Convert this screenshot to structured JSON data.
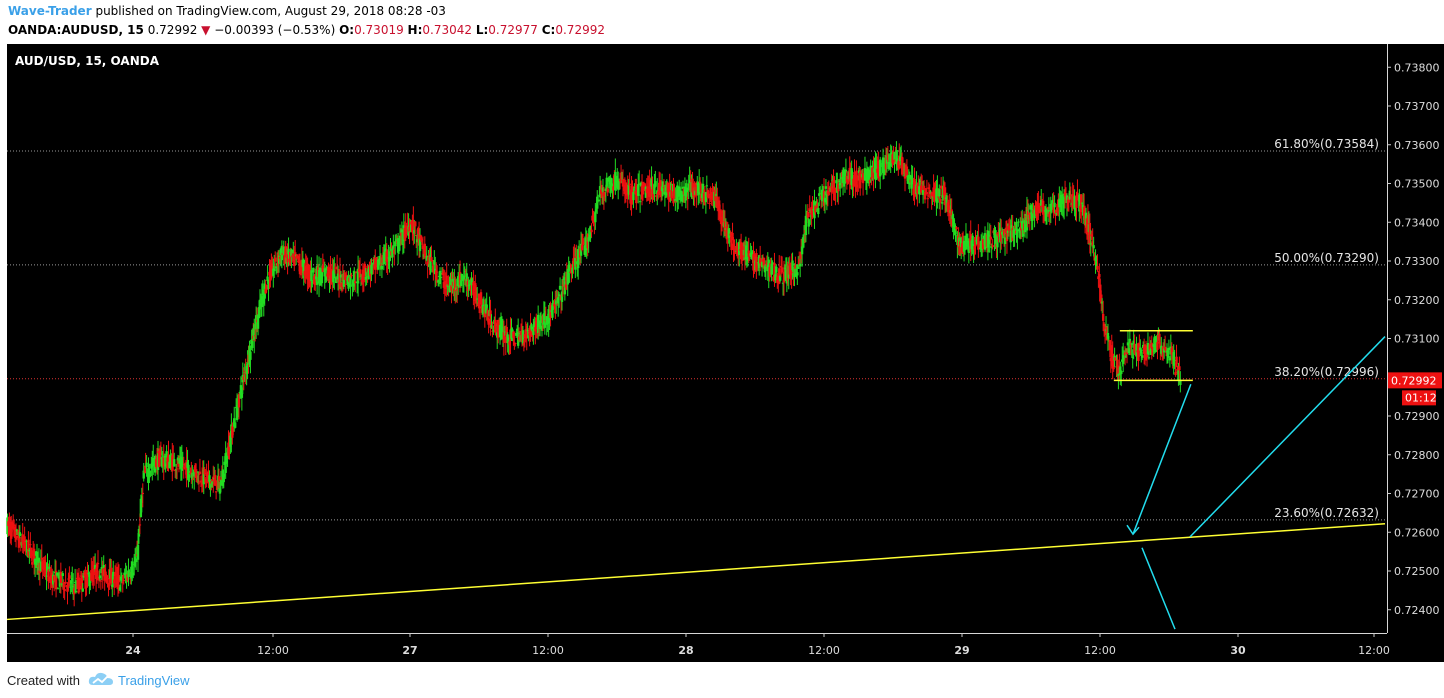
{
  "header": {
    "author": "Wave-Trader",
    "published": "published on TradingView.com, August 29, 2018 08:28 -03",
    "symbol": "OANDA:AUDUSD, 15",
    "price": "0.72992",
    "change": "−0.00393 (−0.53%)",
    "open_label": "O:",
    "open": "0.73019",
    "high_label": "H:",
    "high": "0.73042",
    "low_label": "L:",
    "low": "0.72977",
    "close_label": "C:",
    "close": "0.72992"
  },
  "footer": {
    "created_with": "Created with",
    "brand": "TradingView"
  },
  "colors": {
    "background": "#000000",
    "up": "#22dd22",
    "down": "#ee1111",
    "trendline": "#ffff33",
    "arrow": "#22ddee",
    "price_badge": "#ee1111",
    "axis_text": "#dddddd"
  },
  "chart_data": {
    "type": "candlestick",
    "title": "AUD/USD, 15, OANDA",
    "x_ticks": [
      "24",
      "12:00",
      "27",
      "12:00",
      "28",
      "12:00",
      "29",
      "12:00",
      "30",
      "12:00"
    ],
    "ylim": [
      0.7234,
      0.7386
    ],
    "y_ticks": [
      0.738,
      0.737,
      0.736,
      0.735,
      0.734,
      0.733,
      0.732,
      0.731,
      0.729,
      0.728,
      0.727,
      0.726,
      0.725,
      0.724
    ],
    "y_tick_labels": [
      "0.73800",
      "0.73700",
      "0.73600",
      "0.73500",
      "0.73400",
      "0.73300",
      "0.73200",
      "0.73100",
      "0.72900",
      "0.72800",
      "0.72700",
      "0.72600",
      "0.72500",
      "0.72400"
    ],
    "fib_levels": [
      {
        "label": "61.80%(0.73584)",
        "value": 0.73584
      },
      {
        "label": "50.00%(0.73290)",
        "value": 0.7329
      },
      {
        "label": "38.20%(0.72996)",
        "value": 0.72996
      },
      {
        "label": "23.60%(0.72632)",
        "value": 0.72632
      }
    ],
    "current_price": {
      "value": 0.72992,
      "label": "0.72992",
      "countdown": "01:12"
    },
    "price_path": [
      [
        0,
        0.7262
      ],
      [
        3,
        0.7255
      ],
      [
        6,
        0.7248
      ],
      [
        9,
        0.7246
      ],
      [
        12,
        0.725
      ],
      [
        15,
        0.7247
      ],
      [
        17,
        0.7252
      ],
      [
        18,
        0.7275
      ],
      [
        20,
        0.7279
      ],
      [
        22,
        0.7278
      ],
      [
        25,
        0.7275
      ],
      [
        28,
        0.7272
      ],
      [
        30,
        0.729
      ],
      [
        32,
        0.7308
      ],
      [
        34,
        0.7324
      ],
      [
        36,
        0.7332
      ],
      [
        38,
        0.733
      ],
      [
        40,
        0.7326
      ],
      [
        42,
        0.7327
      ],
      [
        45,
        0.7325
      ],
      [
        48,
        0.7328
      ],
      [
        51,
        0.7333
      ],
      [
        53,
        0.734
      ],
      [
        55,
        0.7331
      ],
      [
        58,
        0.7323
      ],
      [
        60,
        0.7326
      ],
      [
        62,
        0.732
      ],
      [
        64,
        0.7313
      ],
      [
        66,
        0.731
      ],
      [
        68,
        0.7311
      ],
      [
        70,
        0.7314
      ],
      [
        72,
        0.7318
      ],
      [
        74,
        0.7328
      ],
      [
        76,
        0.7334
      ],
      [
        78,
        0.7348
      ],
      [
        80,
        0.7351
      ],
      [
        82,
        0.7347
      ],
      [
        85,
        0.7349
      ],
      [
        88,
        0.7347
      ],
      [
        90,
        0.7349
      ],
      [
        93,
        0.7346
      ],
      [
        95,
        0.7335
      ],
      [
        98,
        0.733
      ],
      [
        100,
        0.7328
      ],
      [
        102,
        0.7326
      ],
      [
        104,
        0.7329
      ],
      [
        105,
        0.7341
      ],
      [
        107,
        0.7346
      ],
      [
        110,
        0.7352
      ],
      [
        112,
        0.7351
      ],
      [
        114,
        0.7353
      ],
      [
        116,
        0.7357
      ],
      [
        117,
        0.7356
      ],
      [
        119,
        0.7349
      ],
      [
        121,
        0.7348
      ],
      [
        123,
        0.7347
      ],
      [
        125,
        0.7334
      ],
      [
        127,
        0.7335
      ],
      [
        130,
        0.7336
      ],
      [
        133,
        0.7338
      ],
      [
        135,
        0.7344
      ],
      [
        137,
        0.7343
      ],
      [
        139,
        0.7346
      ],
      [
        141,
        0.7345
      ],
      [
        143,
        0.733
      ],
      [
        144,
        0.7313
      ],
      [
        145,
        0.7305
      ],
      [
        146,
        0.7302
      ],
      [
        147,
        0.7308
      ],
      [
        149,
        0.7306
      ],
      [
        151,
        0.7309
      ],
      [
        153,
        0.7305
      ],
      [
        154,
        0.72992
      ]
    ],
    "annotations": {
      "range_top": 0.7312,
      "range_bottom": 0.72992,
      "trendline": {
        "start": 0.72375,
        "end": 0.72622
      },
      "arrow_down_from": 0.72982,
      "arrow_down_to": 0.72595,
      "arrow_up_to": 0.73105,
      "line_down_to": 0.7235
    }
  }
}
